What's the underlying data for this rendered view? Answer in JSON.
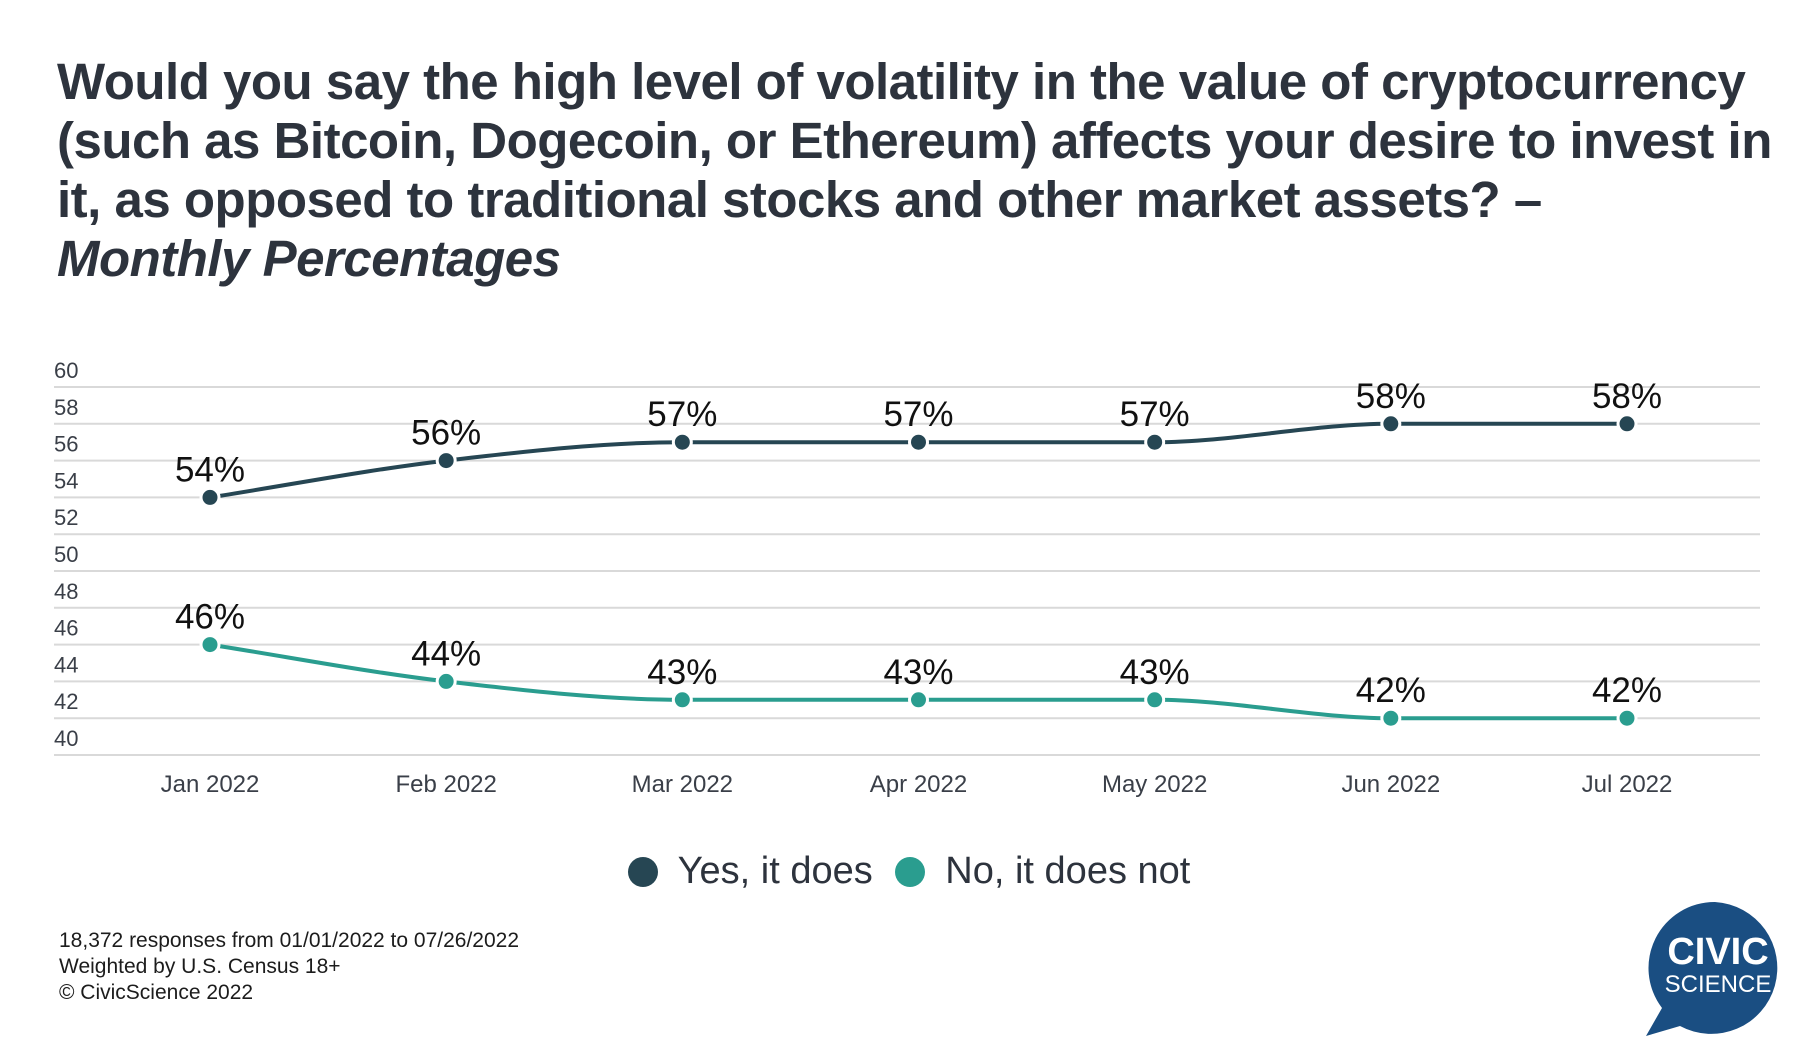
{
  "title": {
    "main": "Would you say the high level of volatility in the value of cryptocurrency (such as Bitcoin, Dogecoin, or Ethereum) affects your desire to invest in it, as opposed to traditional stocks and other market assets? –",
    "subtitle": "Monthly Percentages"
  },
  "chart_data": {
    "type": "line",
    "title": "Would you say the high level of volatility in the value of cryptocurrency (such as Bitcoin, Dogecoin, or Ethereum) affects your desire to invest in it, as opposed to traditional stocks and other market assets? – Monthly Percentages",
    "categories": [
      "Jan 2022",
      "Feb 2022",
      "Mar 2022",
      "Apr 2022",
      "May 2022",
      "Jun 2022",
      "Jul 2022"
    ],
    "series": [
      {
        "name": "Yes, it does",
        "color": "#264653",
        "values": [
          54,
          56,
          57,
          57,
          57,
          58,
          58
        ],
        "labels": [
          "54%",
          "56%",
          "57%",
          "57%",
          "57%",
          "58%",
          "58%"
        ]
      },
      {
        "name": "No, it does not",
        "color": "#2a9d8f",
        "values": [
          46,
          44,
          43,
          43,
          43,
          42,
          42
        ],
        "labels": [
          "46%",
          "44%",
          "43%",
          "43%",
          "43%",
          "42%",
          "42%"
        ]
      }
    ],
    "xlabel": "",
    "ylabel": "",
    "ylim": [
      40,
      60
    ],
    "yticks": [
      40,
      42,
      44,
      46,
      48,
      50,
      52,
      54,
      56,
      58,
      60
    ],
    "grid": true,
    "legend_position": "bottom-center",
    "line_style": "smoothed"
  },
  "legend": {
    "items": [
      {
        "label": "Yes, it does",
        "color": "#264653"
      },
      {
        "label": "No, it does not",
        "color": "#2a9d8f"
      }
    ]
  },
  "footer": {
    "line1": "18,372 responses from 01/01/2022 to 07/26/2022",
    "line2": "Weighted by U.S. Census 18+",
    "line3": "© CivicScience 2022"
  },
  "logo": {
    "line1": "CIVIC",
    "line2": "SCIENCE",
    "color": "#1a4e82"
  }
}
